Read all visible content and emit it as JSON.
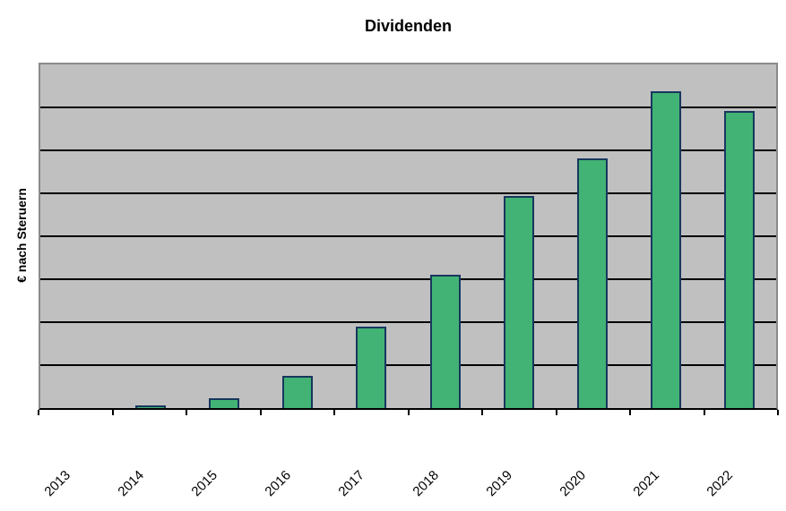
{
  "chart": {
    "title": "Dividenden",
    "y_axis_label": "€ nach Steruern",
    "colors": {
      "bar_fill": "#42b374",
      "bar_border": "#17375e",
      "plot_background": "#c0c0c0",
      "plot_border": "#8a8a8a",
      "gridline": "#000000",
      "axis": "#000000",
      "text": "#000000",
      "page_background": "#ffffff"
    }
  },
  "chart_data": {
    "type": "bar",
    "title": "Dividenden",
    "xlabel": "",
    "ylabel": "€ nach Steruern",
    "categories": [
      "2013",
      "2014",
      "2015",
      "2016",
      "2017",
      "2018",
      "2019",
      "2020",
      "2021",
      "2022"
    ],
    "values": [
      0,
      0.06,
      0.23,
      0.76,
      1.9,
      3.11,
      4.93,
      5.81,
      7.38,
      6.91
    ],
    "ylim": [
      0,
      8
    ],
    "value_units": "gridline-units (no y-axis tick labels visible; 8 equal horizontal divisions)",
    "gridline_divisions": 8,
    "grid": "horizontal",
    "legend": "none",
    "x_label_rotation_deg": 45
  }
}
